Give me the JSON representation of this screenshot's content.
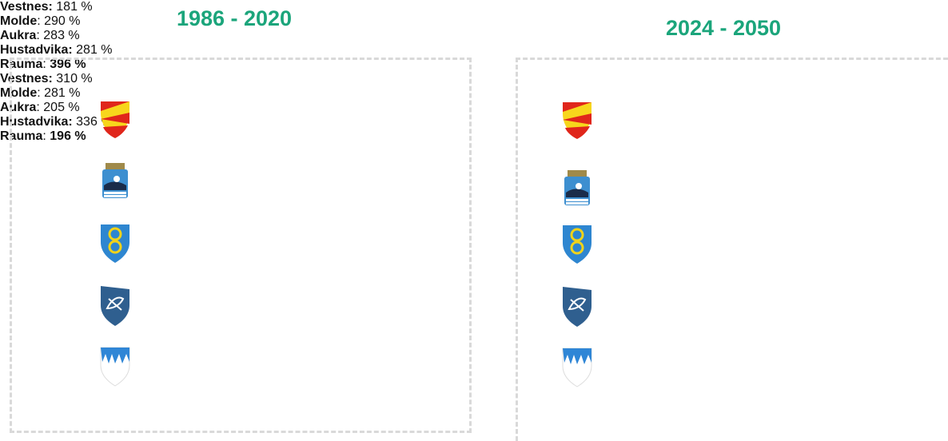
{
  "panels": [
    {
      "title": "1986 - 2020",
      "items": [
        {
          "name": "Vestnes:",
          "value": "181 %"
        },
        {
          "name": "Molde",
          "separator": ":",
          "value": "290 %"
        },
        {
          "name": "Aukra",
          "separator": ":",
          "value": "283 %"
        },
        {
          "name": "Hustadvika:",
          "value": "281 %"
        },
        {
          "name": "Rauma",
          "separator": ":",
          "value": "396 %",
          "value_bold": true
        }
      ]
    },
    {
      "title": "2024 - 2050",
      "items": [
        {
          "name": "Vestnes:",
          "value": "310 %"
        },
        {
          "name": "Molde",
          "separator": ":",
          "value": "281 %"
        },
        {
          "name": "Aukra",
          "separator": ":",
          "value": "205 %"
        },
        {
          "name": "Hustadvika:",
          "value": "336 %"
        },
        {
          "name": "Rauma",
          "separator": ":",
          "value": "196 %",
          "value_bold": true
        }
      ]
    }
  ]
}
